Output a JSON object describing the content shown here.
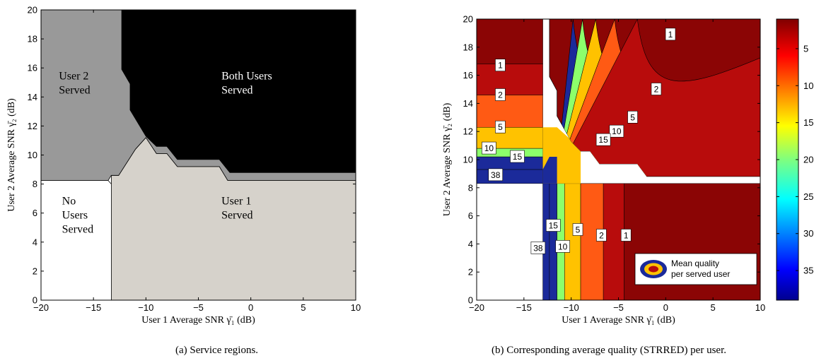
{
  "chart_data": [
    {
      "type": "area",
      "panel": "a",
      "xlabel": "User 1 Average SNR γ̄₁ (dB)",
      "ylabel": "User 2 Average SNR γ̄₂ (dB)",
      "xlim": [
        -20,
        10
      ],
      "ylim": [
        0,
        20
      ],
      "xticks": [
        "−20",
        "−15",
        "−10",
        "−5",
        "0",
        "5",
        "10"
      ],
      "yticks": [
        "0",
        "2",
        "4",
        "6",
        "8",
        "10",
        "12",
        "14",
        "16",
        "18",
        "20"
      ],
      "xtick_values": [
        -20,
        -15,
        -10,
        -5,
        0,
        5,
        10
      ],
      "ytick_values": [
        0,
        2,
        4,
        6,
        8,
        10,
        12,
        14,
        16,
        18,
        20
      ],
      "regions": [
        {
          "name": "No Users Served",
          "color": "#ffffff",
          "polygon": [
            [
              -20,
              0
            ],
            [
              -13.3,
              0
            ],
            [
              -13.3,
              8.0
            ],
            [
              -13.6,
              8.25
            ],
            [
              -20,
              8.25
            ]
          ]
        },
        {
          "name": "User 1 Served",
          "color": "#d6d2cb",
          "polygon": [
            [
              -13.3,
              0
            ],
            [
              10,
              0
            ],
            [
              10,
              8.25
            ],
            [
              -2.2,
              8.25
            ],
            [
              -3.0,
              9.2
            ],
            [
              -7.0,
              9.2
            ],
            [
              -8.0,
              10.1
            ],
            [
              -9.0,
              10.1
            ],
            [
              -10.0,
              11.2
            ],
            [
              -11.0,
              10.4
            ],
            [
              -12.6,
              8.6
            ],
            [
              -13.3,
              8.6
            ],
            [
              -13.3,
              8.0
            ]
          ]
        },
        {
          "name": "User 2 Served",
          "color": "#999999",
          "polygon": [
            [
              -20,
              8.25
            ],
            [
              -13.6,
              8.25
            ],
            [
              -13.3,
              8.6
            ],
            [
              -12.6,
              8.6
            ],
            [
              -11.0,
              10.4
            ],
            [
              -10.0,
              11.2
            ],
            [
              -9.0,
              10.1
            ],
            [
              -8.0,
              10.1
            ],
            [
              -7.0,
              9.2
            ],
            [
              -3.0,
              9.2
            ],
            [
              -2.2,
              8.25
            ],
            [
              10,
              8.25
            ],
            [
              10,
              8.8
            ],
            [
              -2.0,
              8.8
            ],
            [
              -3.0,
              9.7
            ],
            [
              -7.0,
              9.7
            ],
            [
              -8.0,
              10.6
            ],
            [
              -9.0,
              10.6
            ],
            [
              -10.0,
              11.3
            ],
            [
              -11.5,
              13.1
            ],
            [
              -11.5,
              14.9
            ],
            [
              -12.3,
              15.9
            ],
            [
              -12.3,
              20
            ],
            [
              -20,
              20
            ]
          ]
        },
        {
          "name": "Both Users Served",
          "color": "#000000",
          "polygon": [
            [
              -12.3,
              20
            ],
            [
              -12.3,
              15.9
            ],
            [
              -11.5,
              14.9
            ],
            [
              -11.5,
              13.1
            ],
            [
              -10.0,
              11.3
            ],
            [
              -9.0,
              10.6
            ],
            [
              -8.0,
              10.6
            ],
            [
              -7.0,
              9.7
            ],
            [
              -3.0,
              9.7
            ],
            [
              -2.0,
              8.8
            ],
            [
              10,
              8.8
            ],
            [
              10,
              20
            ]
          ]
        }
      ],
      "annotations": [
        {
          "lines": [
            "No",
            "Users",
            "Served"
          ],
          "x": -18.0,
          "y": 6.6,
          "color": "#000000"
        },
        {
          "lines": [
            "User 1",
            "Served"
          ],
          "x": -2.8,
          "y": 6.6,
          "color": "#000000"
        },
        {
          "lines": [
            "User 2",
            "Served"
          ],
          "x": -18.3,
          "y": 15.2,
          "color": "#000000"
        },
        {
          "lines": [
            "Both Users",
            "Served"
          ],
          "x": -2.8,
          "y": 15.2,
          "color": "#ffffff"
        }
      ]
    },
    {
      "type": "heatmap",
      "panel": "b",
      "xlabel": "User 1 Average SNR γ̄₁ (dB)",
      "ylabel": "User 2 Average SNR γ̄₂ (dB)",
      "xlim": [
        -20,
        10
      ],
      "ylim": [
        0,
        20
      ],
      "xticks": [
        "−20",
        "−15",
        "−10",
        "−5",
        "0",
        "5",
        "10"
      ],
      "yticks": [
        "0",
        "2",
        "4",
        "6",
        "8",
        "10",
        "12",
        "14",
        "16",
        "18",
        "20"
      ],
      "xtick_values": [
        -20,
        -15,
        -10,
        -5,
        0,
        5,
        10
      ],
      "ytick_values": [
        0,
        2,
        4,
        6,
        8,
        10,
        12,
        14,
        16,
        18,
        20
      ],
      "colorbar": {
        "ticks": [
          "5",
          "10",
          "15",
          "20",
          "25",
          "30",
          "35"
        ],
        "tick_values": [
          5,
          10,
          15,
          20,
          25,
          30,
          35
        ],
        "range": [
          1,
          39
        ]
      },
      "user1_bands": [
        {
          "label": "38",
          "x0": -13.0,
          "x1": -12.3,
          "color": "#1b2a9a"
        },
        {
          "label": "15",
          "x0": -12.3,
          "x1": -11.5,
          "color": "#1b2a9a"
        },
        {
          "label": "10",
          "x0": -11.5,
          "x1": -10.7,
          "color": "#8cff6b"
        },
        {
          "label": "5",
          "x0": -10.7,
          "x1": -9.0,
          "color": "#ffc200"
        },
        {
          "label": "2",
          "x0": -9.0,
          "x1": -6.6,
          "color": "#ff5a14"
        },
        {
          "label": "1",
          "x0": -6.6,
          "x1": -4.4,
          "color": "#b80c0c"
        },
        {
          "label": "",
          "x0": -4.4,
          "x1": 10,
          "color": "#8b0505"
        }
      ],
      "user2_bands": [
        {
          "label": "38",
          "y0": 8.3,
          "y1": 9.3,
          "color": "#1b2a9a"
        },
        {
          "label": "15",
          "y0": 9.3,
          "y1": 10.2,
          "color": "#1b2a9a"
        },
        {
          "label": "10",
          "y0": 10.2,
          "y1": 10.8,
          "color": "#8cff6b"
        },
        {
          "label": "5",
          "y0": 10.8,
          "y1": 12.3,
          "color": "#ffc200"
        },
        {
          "label": "2",
          "y0": 12.3,
          "y1": 14.6,
          "color": "#ff5a14"
        },
        {
          "label": "1",
          "y0": 14.6,
          "y1": 16.8,
          "color": "#b80c0c"
        },
        {
          "label": "",
          "y0": 16.8,
          "y1": 20,
          "color": "#8b0505"
        }
      ],
      "both_contours": [
        {
          "label": "15",
          "color": "#1b2a9a"
        },
        {
          "label": "10",
          "color": "#8cff6b"
        },
        {
          "label": "5",
          "color": "#ffc200"
        },
        {
          "label": "2",
          "color": "#ff5a14"
        },
        {
          "label": "1",
          "color": "#b80c0c"
        }
      ],
      "contour_labels": [
        {
          "text": "1",
          "x": -17.5,
          "y": 16.7
        },
        {
          "text": "2",
          "x": -17.5,
          "y": 14.6
        },
        {
          "text": "5",
          "x": -17.5,
          "y": 12.3
        },
        {
          "text": "10",
          "x": -18.7,
          "y": 10.8
        },
        {
          "text": "15",
          "x": -15.7,
          "y": 10.2
        },
        {
          "text": "38",
          "x": -18.0,
          "y": 8.9
        },
        {
          "text": "38",
          "x": -13.5,
          "y": 3.7
        },
        {
          "text": "15",
          "x": -11.9,
          "y": 5.3
        },
        {
          "text": "10",
          "x": -10.9,
          "y": 3.8
        },
        {
          "text": "5",
          "x": -9.3,
          "y": 5.0
        },
        {
          "text": "2",
          "x": -6.8,
          "y": 4.6
        },
        {
          "text": "1",
          "x": -4.2,
          "y": 4.6
        },
        {
          "text": "1",
          "x": 0.5,
          "y": 18.9
        },
        {
          "text": "2",
          "x": -1.0,
          "y": 15.0
        },
        {
          "text": "5",
          "x": -3.5,
          "y": 13.0
        },
        {
          "text": "10",
          "x": -5.2,
          "y": 12.0
        },
        {
          "text": "15",
          "x": -6.6,
          "y": 11.4
        }
      ],
      "legend": {
        "lines": [
          "Mean quality",
          "per served user"
        ],
        "placement": "bottom-right"
      }
    }
  ],
  "captions": {
    "a": "(a) Service regions.",
    "b": "(b) Corresponding average quality (STRRED) per user."
  },
  "colors": {
    "no_users": "#ffffff",
    "user1_only": "#d6d2cb",
    "user2_only": "#999999",
    "both": "#000000"
  }
}
